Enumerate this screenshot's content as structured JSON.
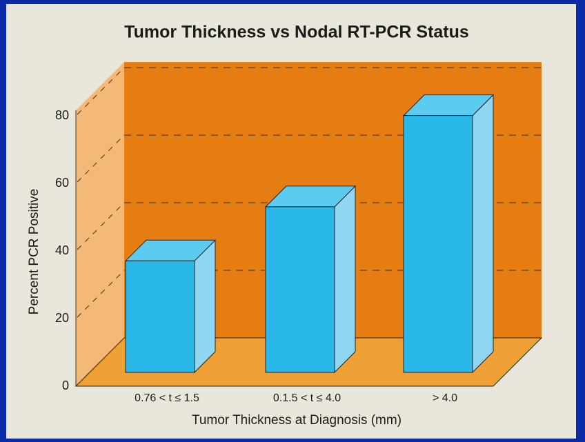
{
  "chart_data": {
    "type": "bar3d",
    "title": "Tumor Thickness vs Nodal RT-PCR Status",
    "x_label": "Tumor Thickness at Diagnosis (mm)",
    "y_label": "Percent PCR Positive",
    "categories": [
      "0.76 < t ≤ 1.5",
      "0.1.5 < t ≤ 4.0",
      "> 4.0"
    ],
    "values": [
      33,
      49,
      76
    ],
    "color": "#2ab8e8",
    "ylim": [
      0,
      80
    ],
    "yticks": [
      0,
      20,
      40,
      60,
      80
    ],
    "grid": true
  }
}
